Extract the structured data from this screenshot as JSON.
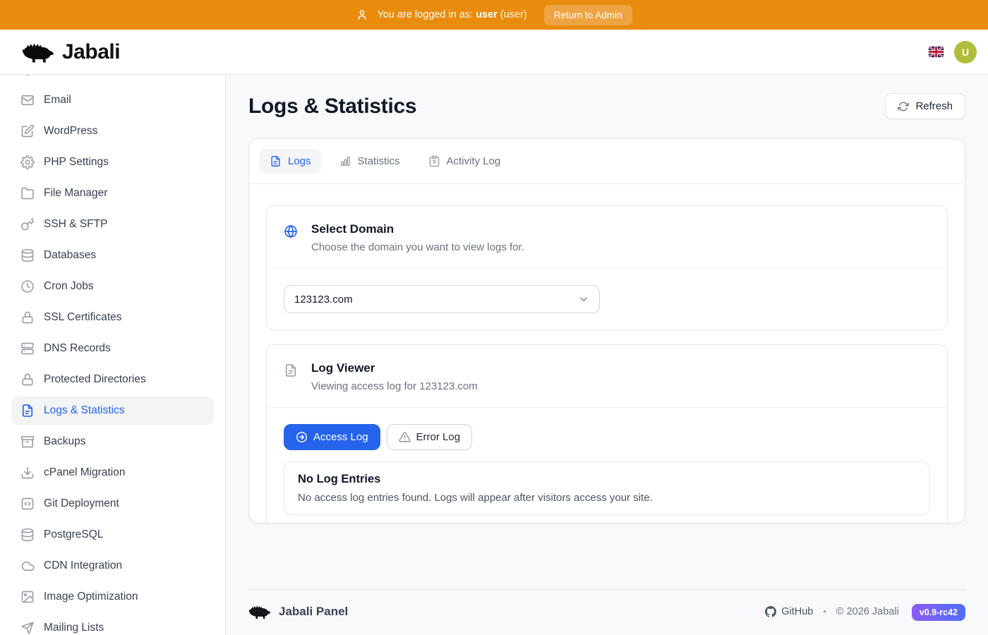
{
  "topbar": {
    "message_prefix": "You are logged in as:",
    "username": "user",
    "role_suffix": "(user)",
    "return_button": "Return to Admin"
  },
  "header": {
    "brand": "Jabali",
    "avatar_initial": "U",
    "language_flag": "uk-flag"
  },
  "sidebar": {
    "items": [
      {
        "icon": "mail",
        "label": "Email"
      },
      {
        "icon": "edit",
        "label": "WordPress"
      },
      {
        "icon": "settings",
        "label": "PHP Settings"
      },
      {
        "icon": "folder",
        "label": "File Manager"
      },
      {
        "icon": "key",
        "label": "SSH & SFTP"
      },
      {
        "icon": "database",
        "label": "Databases"
      },
      {
        "icon": "clock",
        "label": "Cron Jobs"
      },
      {
        "icon": "lock",
        "label": "SSL Certificates"
      },
      {
        "icon": "server",
        "label": "DNS Records"
      },
      {
        "icon": "lock",
        "label": "Protected Directories"
      },
      {
        "icon": "file-text",
        "label": "Logs & Statistics",
        "active": true
      },
      {
        "icon": "archive",
        "label": "Backups"
      },
      {
        "icon": "download",
        "label": "cPanel Migration"
      },
      {
        "icon": "code",
        "label": "Git Deployment"
      },
      {
        "icon": "database",
        "label": "PostgreSQL"
      },
      {
        "icon": "cloud",
        "label": "CDN Integration"
      },
      {
        "icon": "image",
        "label": "Image Optimization"
      },
      {
        "icon": "send",
        "label": "Mailing Lists"
      }
    ]
  },
  "page": {
    "title": "Logs & Statistics",
    "refresh_button": "Refresh"
  },
  "tabs": {
    "items": [
      {
        "icon": "file-text",
        "label": "Logs",
        "active": true
      },
      {
        "icon": "bar-chart",
        "label": "Statistics"
      },
      {
        "icon": "clipboard",
        "label": "Activity Log"
      }
    ]
  },
  "select_domain": {
    "title": "Select Domain",
    "subtitle": "Choose the domain you want to view logs for.",
    "selected_domain": "123123.com"
  },
  "log_viewer": {
    "title": "Log Viewer",
    "subtitle": "Viewing access log for 123123.com",
    "access_button": "Access Log",
    "error_button": "Error Log",
    "empty_title": "No Log Entries",
    "empty_text": "No access log entries found. Logs will appear after visitors access your site."
  },
  "footer": {
    "brand": "Jabali Panel",
    "github_label": "GitHub",
    "separator": "•",
    "copyright": "© 2026 Jabali",
    "version": "v0.9-rc42"
  },
  "colors": {
    "topbar_orange": "#e98b0d",
    "accent_blue": "#2563eb",
    "avatar_olive": "#b1bd3a",
    "badge_gradient_start": "#8b5cf6",
    "badge_gradient_end": "#4f6ef7"
  }
}
